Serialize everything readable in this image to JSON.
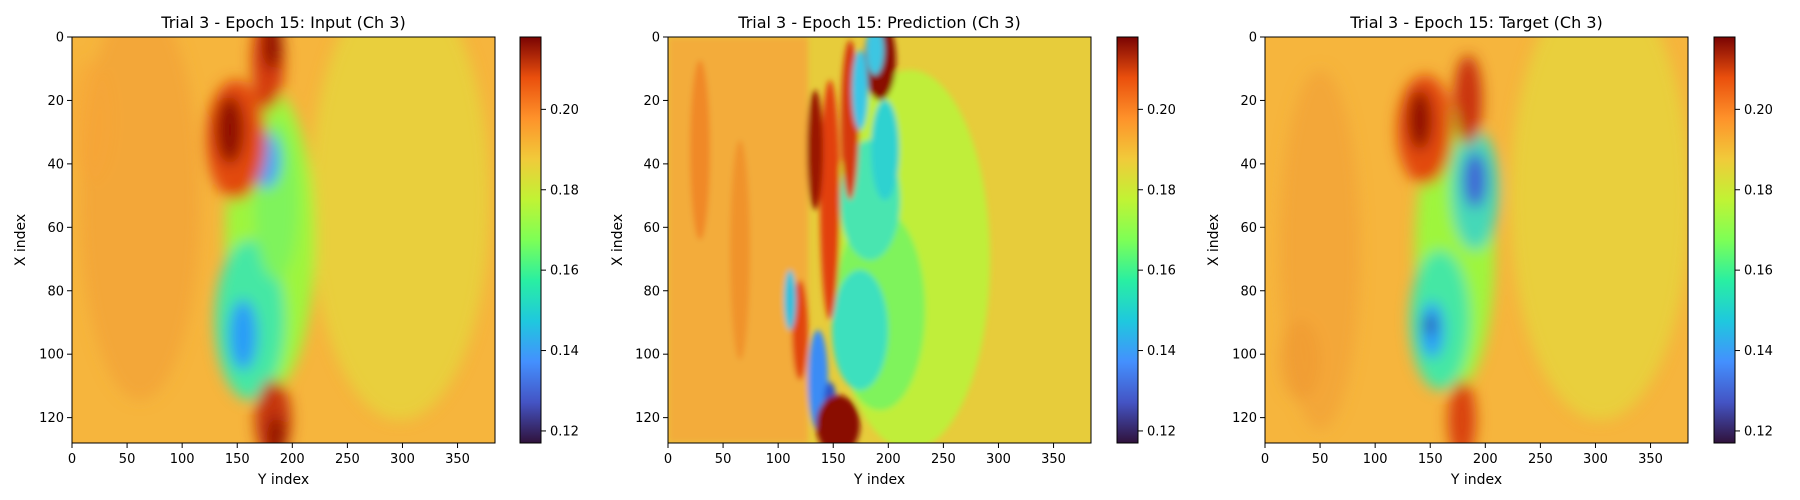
{
  "chart_data": [
    {
      "type": "heatmap",
      "title": "Trial 3 - Epoch 15: Input (Ch 3)",
      "xlabel": "Y index",
      "ylabel": "X index",
      "xlim": [
        0,
        384
      ],
      "ylim": [
        128,
        0
      ],
      "x_ticks": [
        "0",
        "50",
        "100",
        "150",
        "200",
        "250",
        "300",
        "350"
      ],
      "y_ticks": [
        "0",
        "20",
        "40",
        "60",
        "80",
        "100",
        "120"
      ],
      "colormap": "turbo",
      "colorbar": {
        "range": [
          0.117,
          0.218
        ],
        "ticks": [
          "0.12",
          "0.14",
          "0.16",
          "0.18",
          "0.20"
        ]
      },
      "features": [
        {
          "type": "hot",
          "x": 130,
          "y": 30,
          "value": 0.215
        },
        {
          "type": "hot",
          "x": 180,
          "y": 5,
          "value": 0.21
        },
        {
          "type": "hot",
          "x": 185,
          "y": 122,
          "value": 0.21
        },
        {
          "type": "cold",
          "x": 182,
          "y": 40,
          "value": 0.14
        },
        {
          "type": "cold",
          "x": 148,
          "y": 90,
          "value": 0.145
        },
        {
          "type": "green",
          "x": 150,
          "y": 65,
          "value": 0.165
        }
      ]
    },
    {
      "type": "heatmap",
      "title": "Trial 3 - Epoch 15: Prediction (Ch 3)",
      "xlabel": "Y index",
      "ylabel": "X index",
      "xlim": [
        0,
        384
      ],
      "ylim": [
        128,
        0
      ],
      "x_ticks": [
        "0",
        "50",
        "100",
        "150",
        "200",
        "250",
        "300",
        "350"
      ],
      "y_ticks": [
        "0",
        "20",
        "40",
        "60",
        "80",
        "100",
        "120"
      ],
      "colormap": "turbo",
      "colorbar": {
        "range": [
          0.117,
          0.218
        ],
        "ticks": [
          "0.12",
          "0.14",
          "0.16",
          "0.18",
          "0.20"
        ]
      },
      "features": [
        {
          "type": "hot",
          "x": 120,
          "y": 30,
          "value": 0.21
        },
        {
          "type": "hot",
          "x": 165,
          "y": 10,
          "value": 0.215
        },
        {
          "type": "hot",
          "x": 150,
          "y": 120,
          "value": 0.218
        },
        {
          "type": "cold",
          "x": 150,
          "y": 100,
          "value": 0.14
        },
        {
          "type": "cold",
          "x": 175,
          "y": 20,
          "value": 0.15
        },
        {
          "type": "green",
          "x": 180,
          "y": 45,
          "value": 0.165
        }
      ]
    },
    {
      "type": "heatmap",
      "title": "Trial 3 - Epoch 15: Target (Ch 3)",
      "xlabel": "Y index",
      "ylabel": "X index",
      "xlim": [
        0,
        384
      ],
      "ylim": [
        128,
        0
      ],
      "x_ticks": [
        "0",
        "50",
        "100",
        "150",
        "200",
        "250",
        "300",
        "350"
      ],
      "y_ticks": [
        "0",
        "20",
        "40",
        "60",
        "80",
        "100",
        "120"
      ],
      "colormap": "turbo",
      "colorbar": {
        "range": [
          0.117,
          0.218
        ],
        "ticks": [
          "0.12",
          "0.14",
          "0.16",
          "0.18",
          "0.20"
        ]
      },
      "features": [
        {
          "type": "hot",
          "x": 130,
          "y": 25,
          "value": 0.212
        },
        {
          "type": "hot",
          "x": 180,
          "y": 25,
          "value": 0.21
        },
        {
          "type": "hot",
          "x": 180,
          "y": 120,
          "value": 0.205
        },
        {
          "type": "cold",
          "x": 182,
          "y": 42,
          "value": 0.13
        },
        {
          "type": "cold",
          "x": 142,
          "y": 88,
          "value": 0.125
        },
        {
          "type": "green",
          "x": 165,
          "y": 65,
          "value": 0.165
        }
      ]
    }
  ]
}
